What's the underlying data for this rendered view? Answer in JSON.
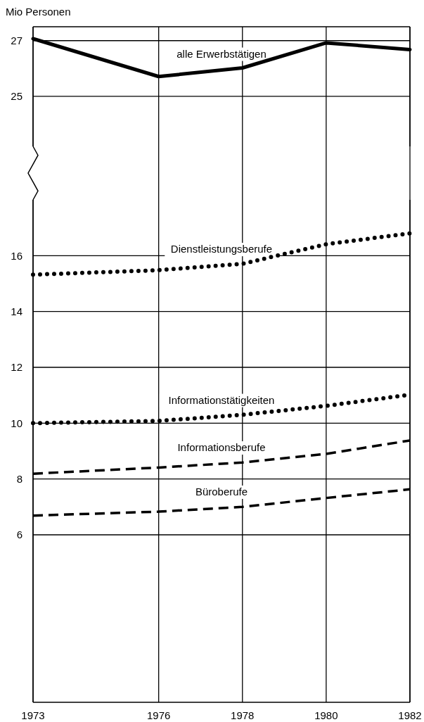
{
  "chart_data": [
    {
      "type": "line",
      "ylabel": "Mio Personen",
      "x": [
        1973,
        1976,
        1978,
        1980,
        1982
      ],
      "xlim": [
        1973,
        1982
      ],
      "xticks": [
        1973,
        1976,
        1978,
        1980,
        1982
      ],
      "ylim": [
        23.2,
        27.5
      ],
      "yticks": [
        25,
        27
      ],
      "grid": true,
      "tick_labels": "y",
      "series": [
        {
          "name": "alle Erwerbstätigen",
          "color": "#000000",
          "line_style": "solid",
          "values": [
            27.07,
            25.71,
            26.02,
            26.92,
            26.68
          ]
        }
      ]
    },
    {
      "type": "line",
      "x": [
        1973,
        1976,
        1978,
        1980,
        1982
      ],
      "xlim": [
        1973,
        1982
      ],
      "xticks": [
        1973,
        1976,
        1978,
        1980,
        1982
      ],
      "ylim": [
        0,
        18
      ],
      "yticks": [
        6,
        8,
        10,
        12,
        14,
        16
      ],
      "grid": true,
      "series": [
        {
          "name": "Dienstleistungsberufe",
          "color": "#000000",
          "line_style": "dotted",
          "values": [
            15.32,
            15.48,
            15.71,
            16.41,
            16.8
          ]
        },
        {
          "name": "Informationstätigkeiten",
          "color": "#000000",
          "line_style": "dotted",
          "values": [
            10.0,
            10.08,
            10.3,
            10.62,
            11.02
          ]
        },
        {
          "name": "Informationsberufe",
          "color": "#000000",
          "line_style": "dashed",
          "values": [
            8.19,
            8.41,
            8.59,
            8.9,
            9.38
          ]
        },
        {
          "name": "Büroberufe",
          "color": "#000000",
          "line_style": "dashed",
          "values": [
            6.69,
            6.83,
            7.0,
            7.32,
            7.63
          ]
        }
      ]
    }
  ]
}
